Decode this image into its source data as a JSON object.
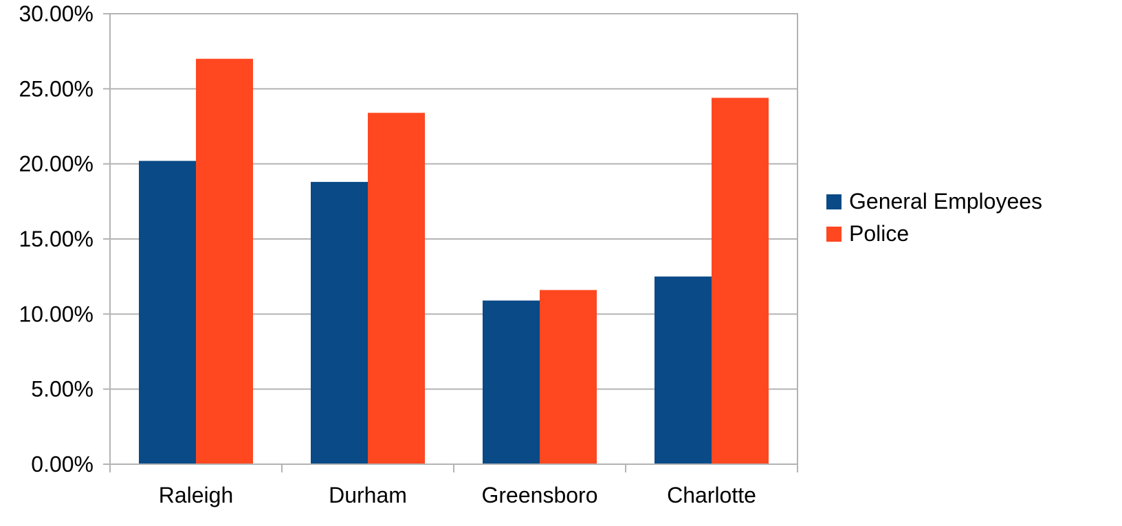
{
  "chart_data": {
    "type": "bar",
    "title": "",
    "xlabel": "",
    "ylabel": "",
    "categories": [
      "Raleigh",
      "Durham",
      "Greensboro",
      "Charlotte"
    ],
    "series": [
      {
        "name": "General Employees",
        "values": [
          0.202,
          0.188,
          0.109,
          0.125
        ],
        "color": "#0a4a86"
      },
      {
        "name": "Police",
        "values": [
          0.27,
          0.234,
          0.116,
          0.244
        ],
        "color": "#ff4720"
      }
    ],
    "ylim": [
      0,
      0.3
    ],
    "yticks": [
      0,
      0.05,
      0.1,
      0.15,
      0.2,
      0.25,
      0.3
    ],
    "ytick_labels": [
      "0.00%",
      "5.00%",
      "10.00%",
      "15.00%",
      "20.00%",
      "25.00%",
      "30.00%"
    ],
    "grid": true,
    "legend_position": "right"
  }
}
